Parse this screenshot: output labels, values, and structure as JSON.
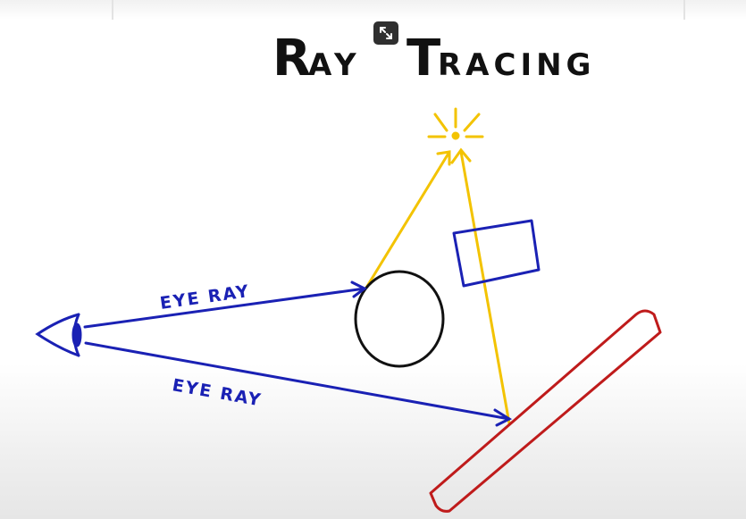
{
  "title": "Ray Tracing",
  "labels": {
    "eye_ray_upper": "EYE RAY",
    "eye_ray_lower": "EYE RAY"
  },
  "colors": {
    "title_ink": "#111111",
    "eye_ray": "#1a21b4",
    "light_ray": "#f3c300",
    "light_source": "#f3c300",
    "sphere": "#111111",
    "box": "#1a21b4",
    "mirror": "#bf1b1b"
  },
  "icons": {
    "expand": "expand-arrows-icon"
  }
}
